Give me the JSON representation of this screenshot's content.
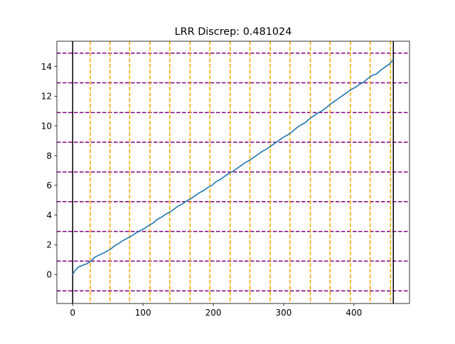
{
  "chart_data": {
    "type": "line",
    "title": "LRR Discrep: 0.481024",
    "xlabel": "",
    "ylabel": "",
    "xlim": [
      -22.5,
      479
    ],
    "ylim": [
      -1.95,
      15.7
    ],
    "x_ticks": [
      0,
      100,
      200,
      300,
      400
    ],
    "y_ticks": [
      0,
      2,
      4,
      6,
      8,
      10,
      12,
      14
    ],
    "grid": false,
    "series": [
      {
        "color": "#1f77b4",
        "x": [
          0,
          3,
          8,
          14,
          20,
          26,
          31,
          37,
          44,
          50,
          55,
          60,
          66,
          72,
          78,
          84,
          90,
          96,
          102,
          108,
          114,
          120,
          126,
          132,
          138,
          144,
          150,
          156,
          162,
          168,
          174,
          180,
          186,
          192,
          198,
          204,
          210,
          216,
          222,
          228,
          234,
          240,
          246,
          252,
          258,
          264,
          270,
          276,
          282,
          288,
          294,
          300,
          306,
          312,
          318,
          324,
          330,
          336,
          342,
          348,
          354,
          360,
          366,
          372,
          378,
          384,
          390,
          396,
          402,
          408,
          414,
          420,
          426,
          432,
          438,
          444,
          450,
          456
        ],
        "y": [
          0,
          0.25,
          0.5,
          0.62,
          0.72,
          0.9,
          1.15,
          1.3,
          1.45,
          1.6,
          1.75,
          1.95,
          2.1,
          2.3,
          2.45,
          2.6,
          2.8,
          2.95,
          3.1,
          3.3,
          3.45,
          3.7,
          3.85,
          4.05,
          4.2,
          4.4,
          4.6,
          4.75,
          4.95,
          5.1,
          5.3,
          5.5,
          5.65,
          5.85,
          6.0,
          6.25,
          6.4,
          6.6,
          6.8,
          6.95,
          7.15,
          7.35,
          7.55,
          7.7,
          7.9,
          8.1,
          8.3,
          8.45,
          8.65,
          8.85,
          9.05,
          9.25,
          9.4,
          9.6,
          9.85,
          10.05,
          10.2,
          10.45,
          10.65,
          10.85,
          11.0,
          11.2,
          11.45,
          11.65,
          11.85,
          12.05,
          12.25,
          12.45,
          12.6,
          12.8,
          12.95,
          13.2,
          13.4,
          13.5,
          13.75,
          13.95,
          14.15,
          14.45
        ]
      }
    ],
    "vertical_lines": {
      "black": [
        0,
        456
      ],
      "orange_dashed": [
        25,
        53,
        81,
        110,
        138,
        167,
        195,
        224,
        252,
        281,
        309,
        338,
        366,
        395,
        423,
        452
      ]
    },
    "horizontal_lines": {
      "purple_dashed": [
        -1.1,
        0.9,
        2.9,
        4.9,
        6.9,
        8.9,
        10.9,
        12.9,
        14.9
      ]
    },
    "colors": {
      "line": "#1f77b4",
      "orange": "#ffa500",
      "purple": "#800080",
      "black": "#000000"
    }
  }
}
